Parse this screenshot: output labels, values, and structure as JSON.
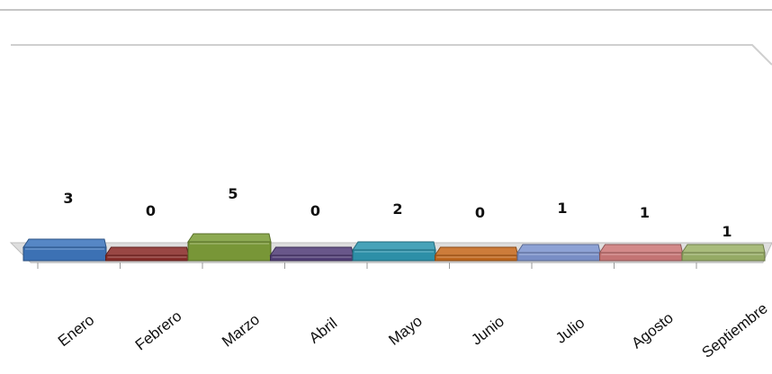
{
  "chart_data": {
    "type": "bar",
    "categories": [
      "Enero",
      "Febrero",
      "Marzo",
      "Abril",
      "Mayo",
      "Junio",
      "Julio",
      "Agosto",
      "Septiembre"
    ],
    "values": [
      3,
      0,
      5,
      0,
      2,
      0,
      1,
      1,
      1
    ],
    "ylim": [
      0,
      5
    ],
    "grid": false,
    "legend": "none",
    "three_d": true,
    "colors": [
      "#3f77bd",
      "#8b2e2b",
      "#7e9e3a",
      "#54407a",
      "#2f97b0",
      "#c66a1f",
      "#7f95cf",
      "#cd7a7a",
      "#9db36a"
    ]
  }
}
